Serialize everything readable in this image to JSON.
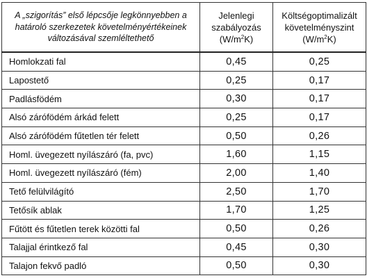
{
  "header": {
    "description": "A „szigorítás” első lépcsője legkönnyebben a határoló szerkezetek követelményértékeinek változásával szemléltethető",
    "current": {
      "line1": "Jelenlegi",
      "line2": "szabályozás",
      "unit_prefix": "(W/m",
      "unit_sup": "2",
      "unit_suffix": "K)"
    },
    "optimal": {
      "line1": "Költségoptimalizált",
      "line2": "követelményszint",
      "unit_prefix": "(W/m",
      "unit_sup": "2",
      "unit_suffix": "K)"
    }
  },
  "rows": [
    {
      "label": "Homlokzati fal",
      "current": "0,45",
      "optimal": "0,25"
    },
    {
      "label": "Lapostető",
      "current": "0,25",
      "optimal": "0,17"
    },
    {
      "label": "Padlásfödém",
      "current": "0,30",
      "optimal": "0,17"
    },
    {
      "label": "Alsó zárófödém árkád felett",
      "current": "0,25",
      "optimal": "0,17"
    },
    {
      "label": "Alsó zárófödém fűtetlen tér felett",
      "current": "0,50",
      "optimal": "0,26"
    },
    {
      "label": "Homl. üvegezett nyílászáró (fa, pvc)",
      "current": "1,60",
      "optimal": "1,15"
    },
    {
      "label": "Homl. üvegezett nyílászáró (fém)",
      "current": "2,00",
      "optimal": "1,40"
    },
    {
      "label": "Tető felülvilágító",
      "current": "2,50",
      "optimal": "1,70"
    },
    {
      "label": "Tetősík ablak",
      "current": "1,70",
      "optimal": "1,25"
    },
    {
      "label": "Fűtött és fűtetlen terek közötti fal",
      "current": "0,50",
      "optimal": "0,26"
    },
    {
      "label": "Talajjal érintkező fal",
      "current": "0,45",
      "optimal": "0,30"
    },
    {
      "label": "Talajon fekvő padló",
      "current": "0,50",
      "optimal": "0,30"
    }
  ]
}
